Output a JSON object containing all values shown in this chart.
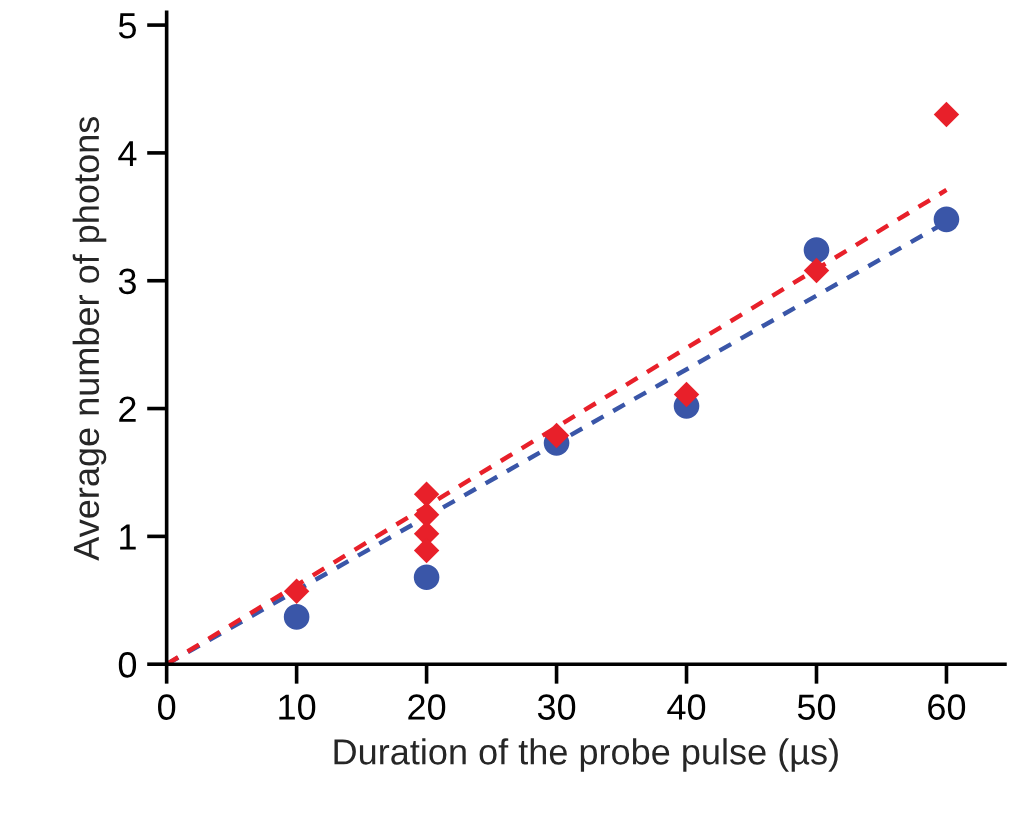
{
  "chart_data": {
    "type": "scatter",
    "xlabel": "Duration of the probe pulse (µs)",
    "ylabel": "Average number of photons",
    "xlim": [
      0,
      64.5
    ],
    "ylim": [
      0,
      5.1
    ],
    "xticks": [
      0,
      10,
      20,
      30,
      40,
      50,
      60
    ],
    "yticks": [
      0,
      1,
      2,
      3,
      4,
      5
    ],
    "grid": false,
    "legend": false,
    "series": [
      {
        "color": "#3a56a8",
        "marker": "circle",
        "x": [
          10,
          20,
          30,
          40,
          50,
          60
        ],
        "values": [
          0.37,
          0.68,
          1.73,
          2.02,
          3.24,
          3.48
        ]
      },
      {
        "color": "#e8202a",
        "marker": "diamond",
        "x": [
          10,
          20,
          20,
          20,
          20,
          30,
          40,
          50,
          60
        ],
        "values": [
          0.57,
          1.33,
          1.17,
          1.02,
          0.89,
          1.79,
          2.11,
          3.08,
          4.3
        ]
      },
      {
        "type": "line",
        "color": "#3a56a8",
        "line_style": "dashed",
        "marker": "none",
        "x": [
          0,
          60
        ],
        "values": [
          0,
          3.46
        ]
      },
      {
        "type": "line",
        "color": "#e8202a",
        "line_style": "dashed",
        "marker": "none",
        "x": [
          0,
          60
        ],
        "values": [
          0,
          3.71
        ]
      }
    ]
  }
}
